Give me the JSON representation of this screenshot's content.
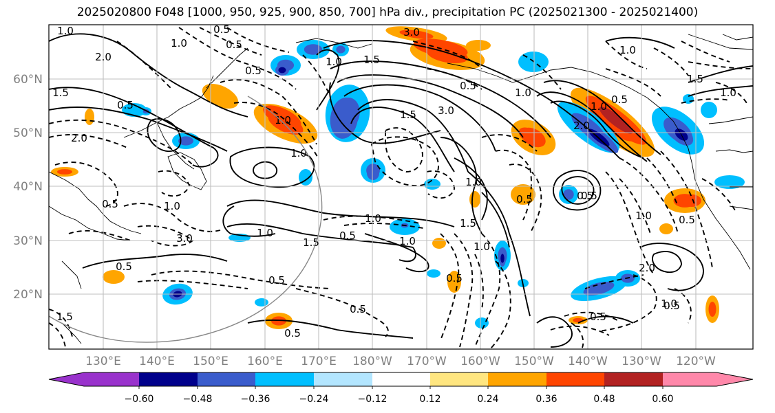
{
  "title": "2025020800 F048 [1000, 950, 925, 900, 850, 700] hPa div., precipitation PC (2025021300 - 2025021400)",
  "map": {
    "lat_ticks": [
      "60°N",
      "50°N",
      "40°N",
      "30°N",
      "20°N"
    ],
    "lon_ticks": [
      "130°E",
      "140°E",
      "150°E",
      "160°E",
      "170°E",
      "180°W",
      "170°W",
      "160°W",
      "150°W",
      "140°W",
      "130°W",
      "120°W"
    ],
    "grid": true,
    "contour_labels": [
      "1.0",
      "0.5",
      "2.0",
      "1.5",
      "0.5",
      "1.0",
      "0.5",
      "2.0",
      "3.0",
      "1.0",
      "1.5",
      "0.5",
      "1.0",
      "1.5",
      "0.5",
      "1.0",
      "1.0",
      "0.5",
      "0.5",
      "3.0",
      "1.0",
      "0.5",
      "1.0",
      "3.0",
      "1.5",
      "1.0",
      "0.5",
      "1.0",
      "1.5",
      "1.0",
      "2.0",
      "0.5",
      "1.0",
      "1.0",
      "0.5",
      "0.5",
      "0.5",
      "0.5",
      "1.0",
      "0.5",
      "1.5",
      "0.5",
      "2.0",
      "1.0",
      "1.0",
      "1.5",
      "1.0",
      "0.5",
      "0.5",
      "0.5"
    ]
  },
  "colorbar": {
    "ticks": [
      "−0.60",
      "−0.48",
      "−0.36",
      "−0.24",
      "−0.12",
      "0.12",
      "0.24",
      "0.36",
      "0.48",
      "0.60"
    ],
    "colors": [
      "#9932cc",
      "#00008b",
      "#3a5ccc",
      "#00bfff",
      "#b3e6ff",
      "#ffffff",
      "#ffe680",
      "#ffa500",
      "#ff4500",
      "#b22222",
      "#ff88aa"
    ]
  }
}
